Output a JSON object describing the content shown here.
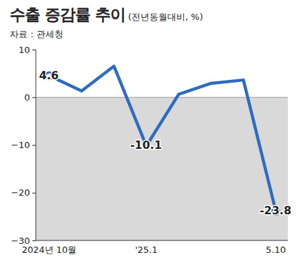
{
  "chart_data": {
    "type": "line",
    "title": "수출 증감률 추이",
    "subtitle": "(전년동월대비, %)",
    "source": "자료 : 관세청",
    "categories": [
      "2024년 10월",
      null,
      null,
      "'25.1",
      null,
      null,
      null,
      "5.10"
    ],
    "values": [
      4.6,
      1.4,
      6.6,
      -10.1,
      0.7,
      3.0,
      3.7,
      -23.8
    ],
    "value_labels": [
      "4.6",
      null,
      null,
      "-10.1",
      null,
      null,
      null,
      "-23.8"
    ],
    "data_labels": true,
    "color": "#2f6cc0",
    "marker": "circle",
    "grid": false,
    "ylim": [
      -30,
      10
    ],
    "yticks": [
      -30,
      -20,
      -10,
      0,
      10
    ]
  }
}
